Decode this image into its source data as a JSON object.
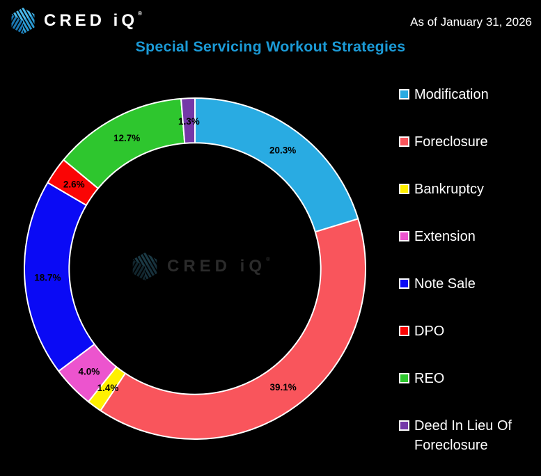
{
  "header": {
    "logo_text": "CRED iQ",
    "logo_reg_mark": "®",
    "as_of_date": "As of January 31, 2026"
  },
  "title": "Special Servicing Workout Strategies",
  "watermark": {
    "logo_text": "CRED iQ",
    "logo_reg_mark": "®"
  },
  "colors": {
    "background": "#000000",
    "title": "#1B9AD6",
    "slice_stroke": "#FFFFFF",
    "slice_label_text": "#000000",
    "legend_text": "#FFFFFF"
  },
  "chart_data": {
    "type": "pie",
    "subtype": "donut",
    "title": "Special Servicing Workout Strategies",
    "start_angle_deg": 0,
    "direction": "clockwise",
    "inner_radius_ratio": 0.74,
    "legend_position": "right",
    "grid": false,
    "series": [
      {
        "label": "Modification",
        "value": 20.3,
        "display": "20.3%",
        "color": "#29ABE2"
      },
      {
        "label": "Foreclosure",
        "value": 39.1,
        "display": "39.1%",
        "color": "#F9555C"
      },
      {
        "label": "Bankruptcy",
        "value": 1.4,
        "display": "1.4%",
        "color": "#FFF000"
      },
      {
        "label": "Extension",
        "value": 4.0,
        "display": "4.0%",
        "color": "#EC54CE"
      },
      {
        "label": "Note Sale",
        "value": 18.7,
        "display": "18.7%",
        "color": "#0A0AF5"
      },
      {
        "label": "DPO",
        "value": 2.6,
        "display": "2.6%",
        "color": "#FA0505"
      },
      {
        "label": "REO",
        "value": 12.7,
        "display": "12.7%",
        "color": "#2EC62E"
      },
      {
        "label": "Deed In Lieu Of Foreclosure",
        "value": 1.3,
        "display": "1.3%",
        "color": "#7438A8"
      }
    ]
  }
}
